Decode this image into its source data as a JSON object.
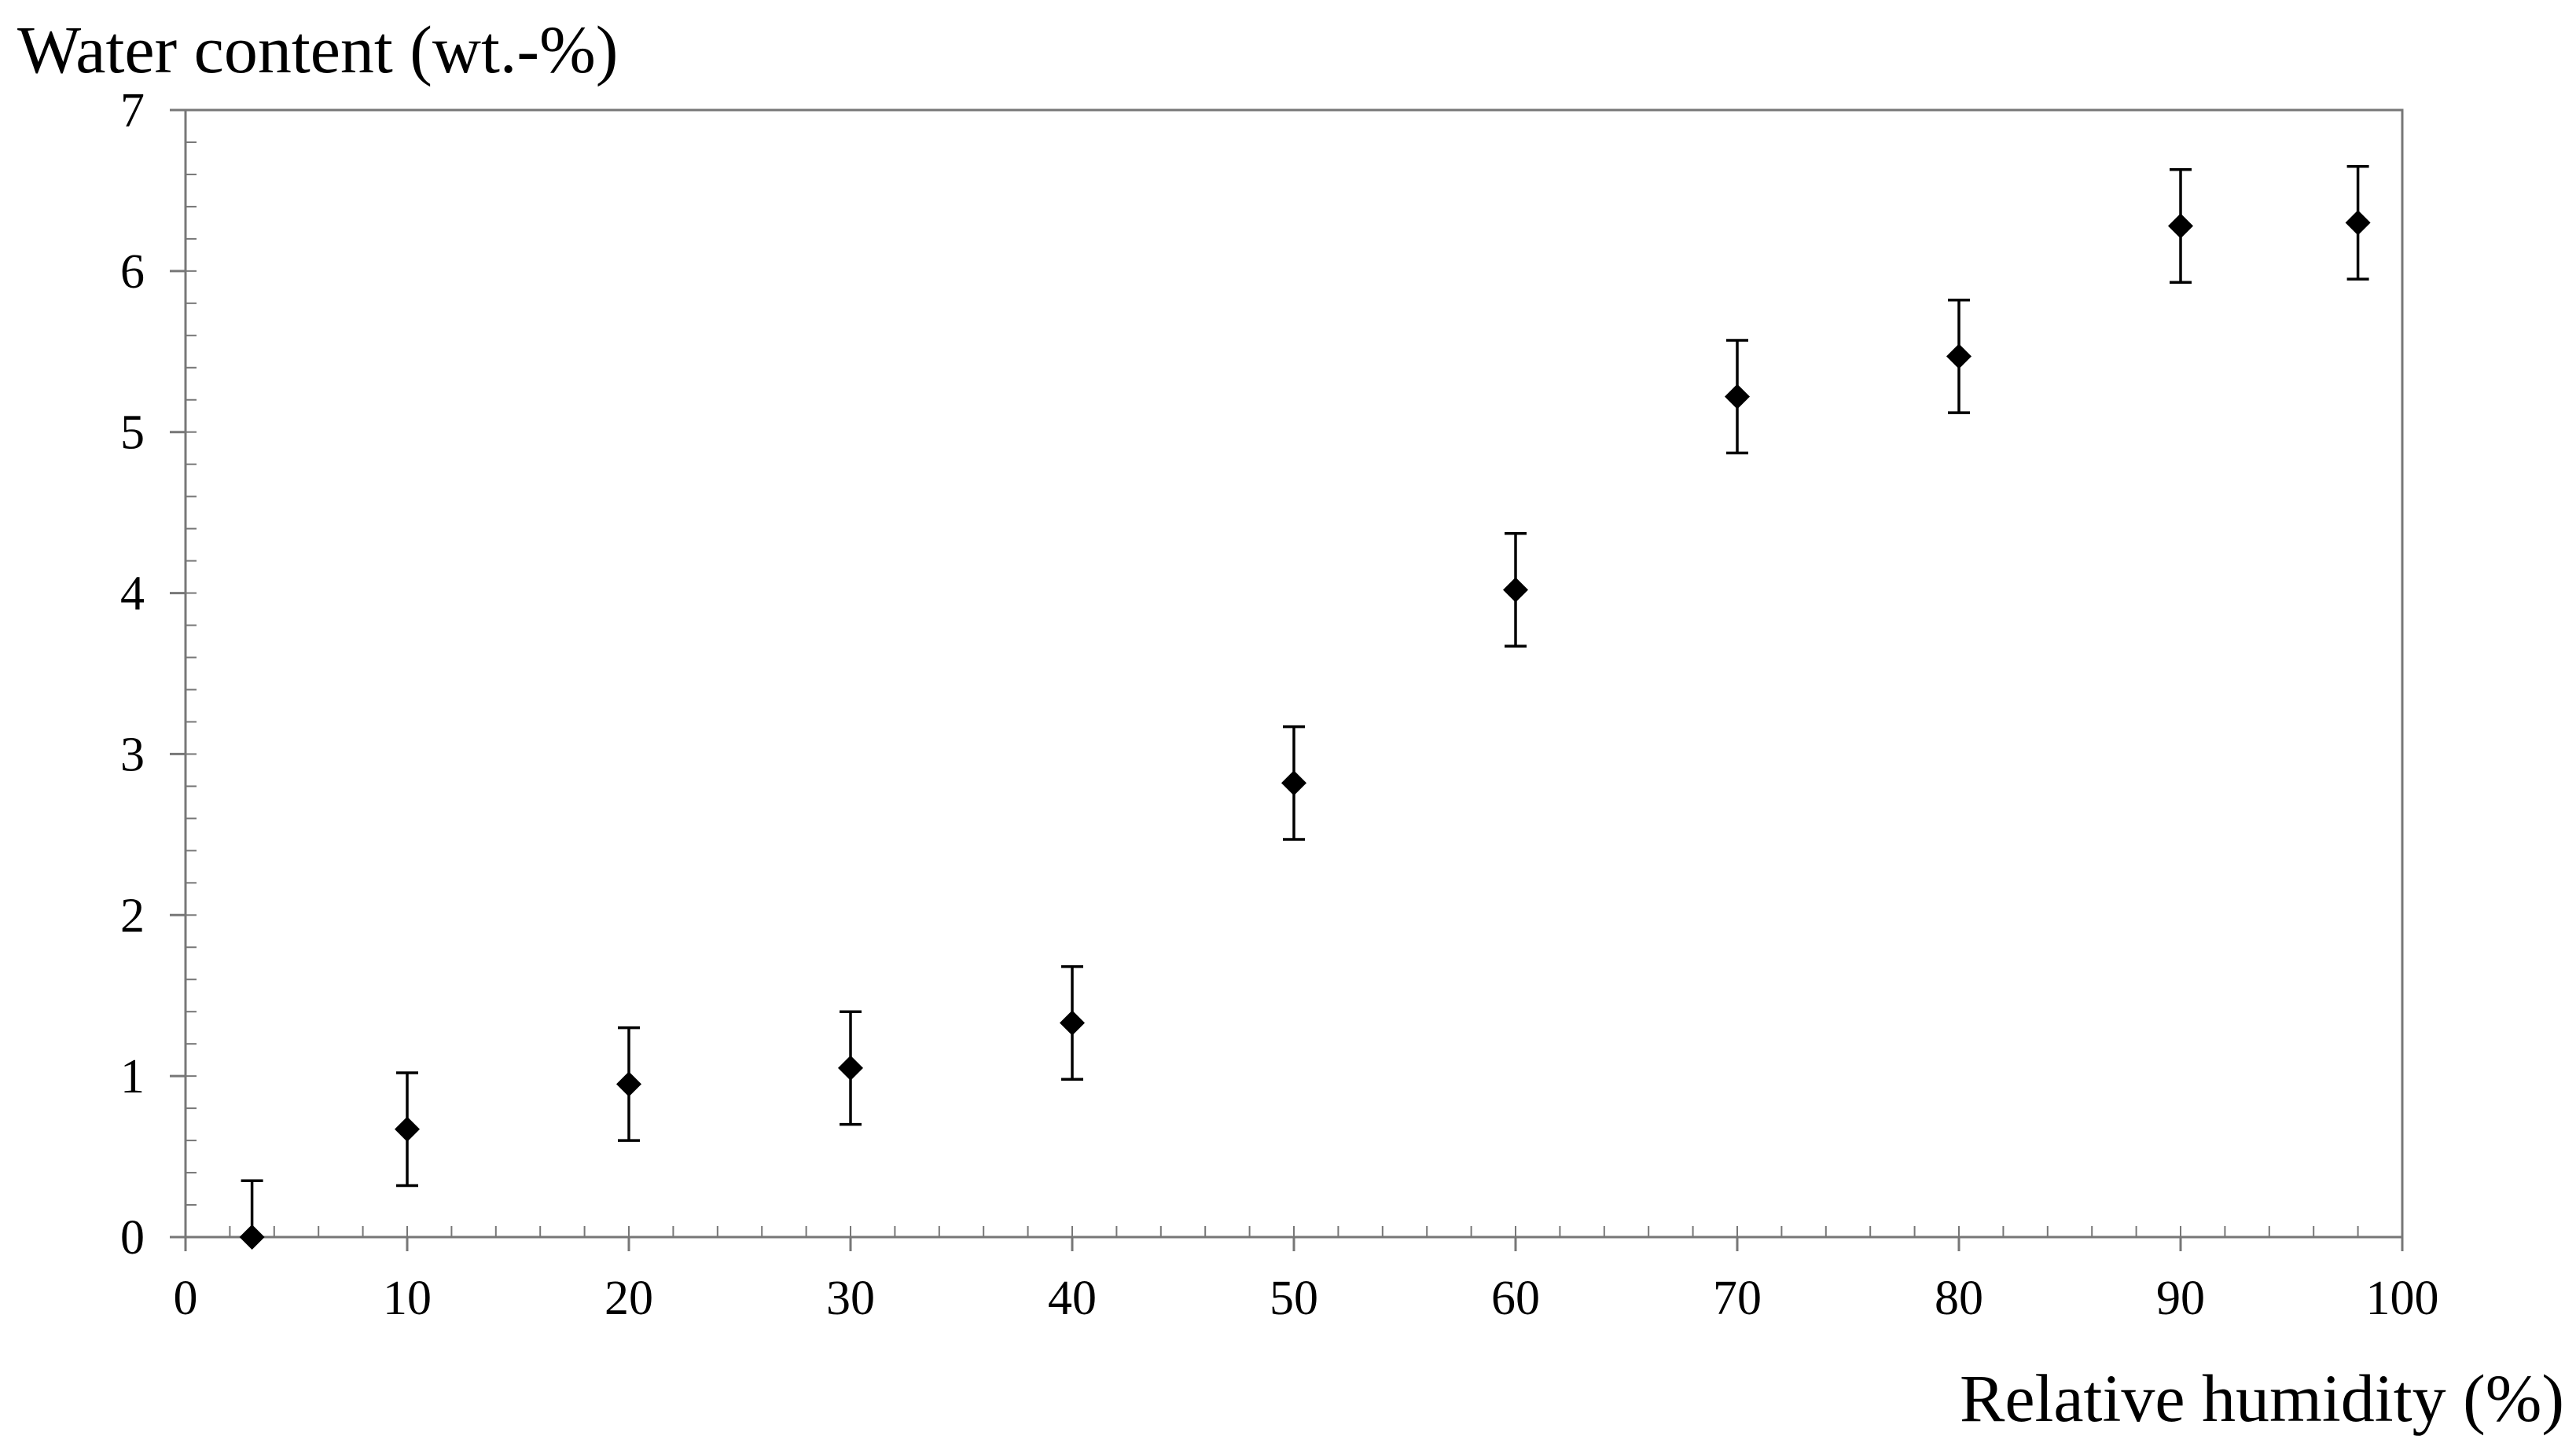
{
  "chart_data": {
    "type": "scatter",
    "title": "",
    "xlabel": "Relative humidity (%)",
    "ylabel": "Water content (wt.-%)",
    "xlim": [
      0,
      100
    ],
    "ylim": [
      0,
      7
    ],
    "x_ticks": [
      0,
      10,
      20,
      30,
      40,
      50,
      60,
      70,
      80,
      90,
      100
    ],
    "y_ticks": [
      0,
      1,
      2,
      3,
      4,
      5,
      6,
      7
    ],
    "x_tick_labels": [
      "0",
      "10",
      "20",
      "30",
      "40",
      "50",
      "60",
      "70",
      "80",
      "90",
      "100"
    ],
    "y_tick_labels": [
      "0",
      "1",
      "2",
      "3",
      "4",
      "5",
      "6",
      "7"
    ],
    "x_minor_step": 2,
    "y_minor_step": 0.2,
    "grid": false,
    "legend": "none",
    "marker": "diamond",
    "color": "#000000",
    "series": [
      {
        "points": [
          {
            "x": 3,
            "y": 0.0,
            "err": 0.35
          },
          {
            "x": 10,
            "y": 0.67,
            "err": 0.35
          },
          {
            "x": 20,
            "y": 0.95,
            "err": 0.35
          },
          {
            "x": 30,
            "y": 1.05,
            "err": 0.35
          },
          {
            "x": 40,
            "y": 1.33,
            "err": 0.35
          },
          {
            "x": 50,
            "y": 2.82,
            "err": 0.35
          },
          {
            "x": 60,
            "y": 4.02,
            "err": 0.35
          },
          {
            "x": 70,
            "y": 5.22,
            "err": 0.35
          },
          {
            "x": 80,
            "y": 5.47,
            "err": 0.35
          },
          {
            "x": 90,
            "y": 6.28,
            "err": 0.35
          },
          {
            "x": 98,
            "y": 6.3,
            "err": 0.35
          }
        ]
      }
    ]
  }
}
